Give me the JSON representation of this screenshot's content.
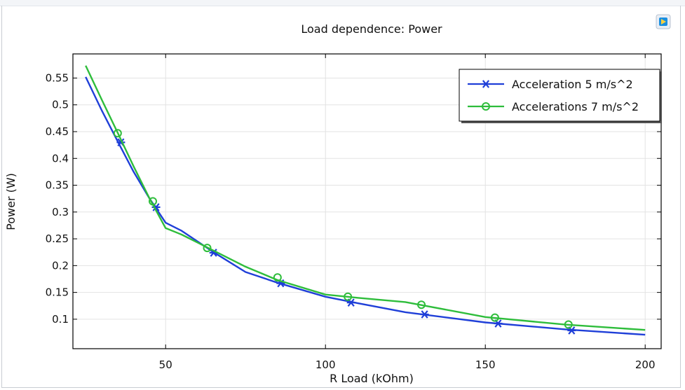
{
  "chart_data": {
    "type": "line",
    "title": "Load dependence: Power",
    "xlabel": "R Load (kOhm)",
    "ylabel": "Power (W)",
    "xlim": [
      21,
      205
    ],
    "ylim": [
      0.045,
      0.595
    ],
    "xticks": [
      50,
      100,
      150,
      200
    ],
    "xtick_labels": [
      "50",
      "100",
      "150",
      "200"
    ],
    "yticks": [
      0.1,
      0.15,
      0.2,
      0.25,
      0.3,
      0.35,
      0.4,
      0.45,
      0.5,
      0.55
    ],
    "ytick_labels": [
      "0.1",
      "0.15",
      "0.2",
      "0.25",
      "0.3",
      "0.35",
      "0.4",
      "0.45",
      "0.5",
      "0.55"
    ],
    "grid": true,
    "legend_position": "top-right",
    "series": [
      {
        "name": "Acceleration 5 m/s^2",
        "color": "#1f3fd8",
        "marker": "asterisk",
        "x": [
          25,
          30,
          35,
          40,
          45,
          50,
          55,
          60,
          65,
          75,
          85,
          100,
          110,
          125,
          150,
          175,
          200
        ],
        "y": [
          0.552,
          0.49,
          0.432,
          0.375,
          0.325,
          0.28,
          0.265,
          0.245,
          0.225,
          0.188,
          0.168,
          0.142,
          0.13,
          0.113,
          0.094,
          0.081,
          0.071
        ],
        "marker_x": [
          36,
          47,
          65,
          86,
          108,
          131,
          154,
          177
        ],
        "marker_y": [
          0.43,
          0.309,
          0.224,
          0.167,
          0.131,
          0.109,
          0.092,
          0.079
        ]
      },
      {
        "name": "Accelerations 7 m/s^2",
        "color": "#2ebd3b",
        "marker": "circle",
        "x": [
          25,
          30,
          35,
          40,
          45,
          50,
          55,
          60,
          65,
          75,
          85,
          100,
          110,
          125,
          150,
          175,
          200
        ],
        "y": [
          0.573,
          0.51,
          0.448,
          0.385,
          0.325,
          0.27,
          0.258,
          0.243,
          0.228,
          0.198,
          0.173,
          0.146,
          0.14,
          0.132,
          0.104,
          0.09,
          0.08
        ],
        "marker_x": [
          35,
          46,
          63,
          85,
          107,
          130,
          153,
          176
        ],
        "marker_y": [
          0.447,
          0.32,
          0.233,
          0.178,
          0.142,
          0.127,
          0.103,
          0.09
        ]
      }
    ]
  }
}
